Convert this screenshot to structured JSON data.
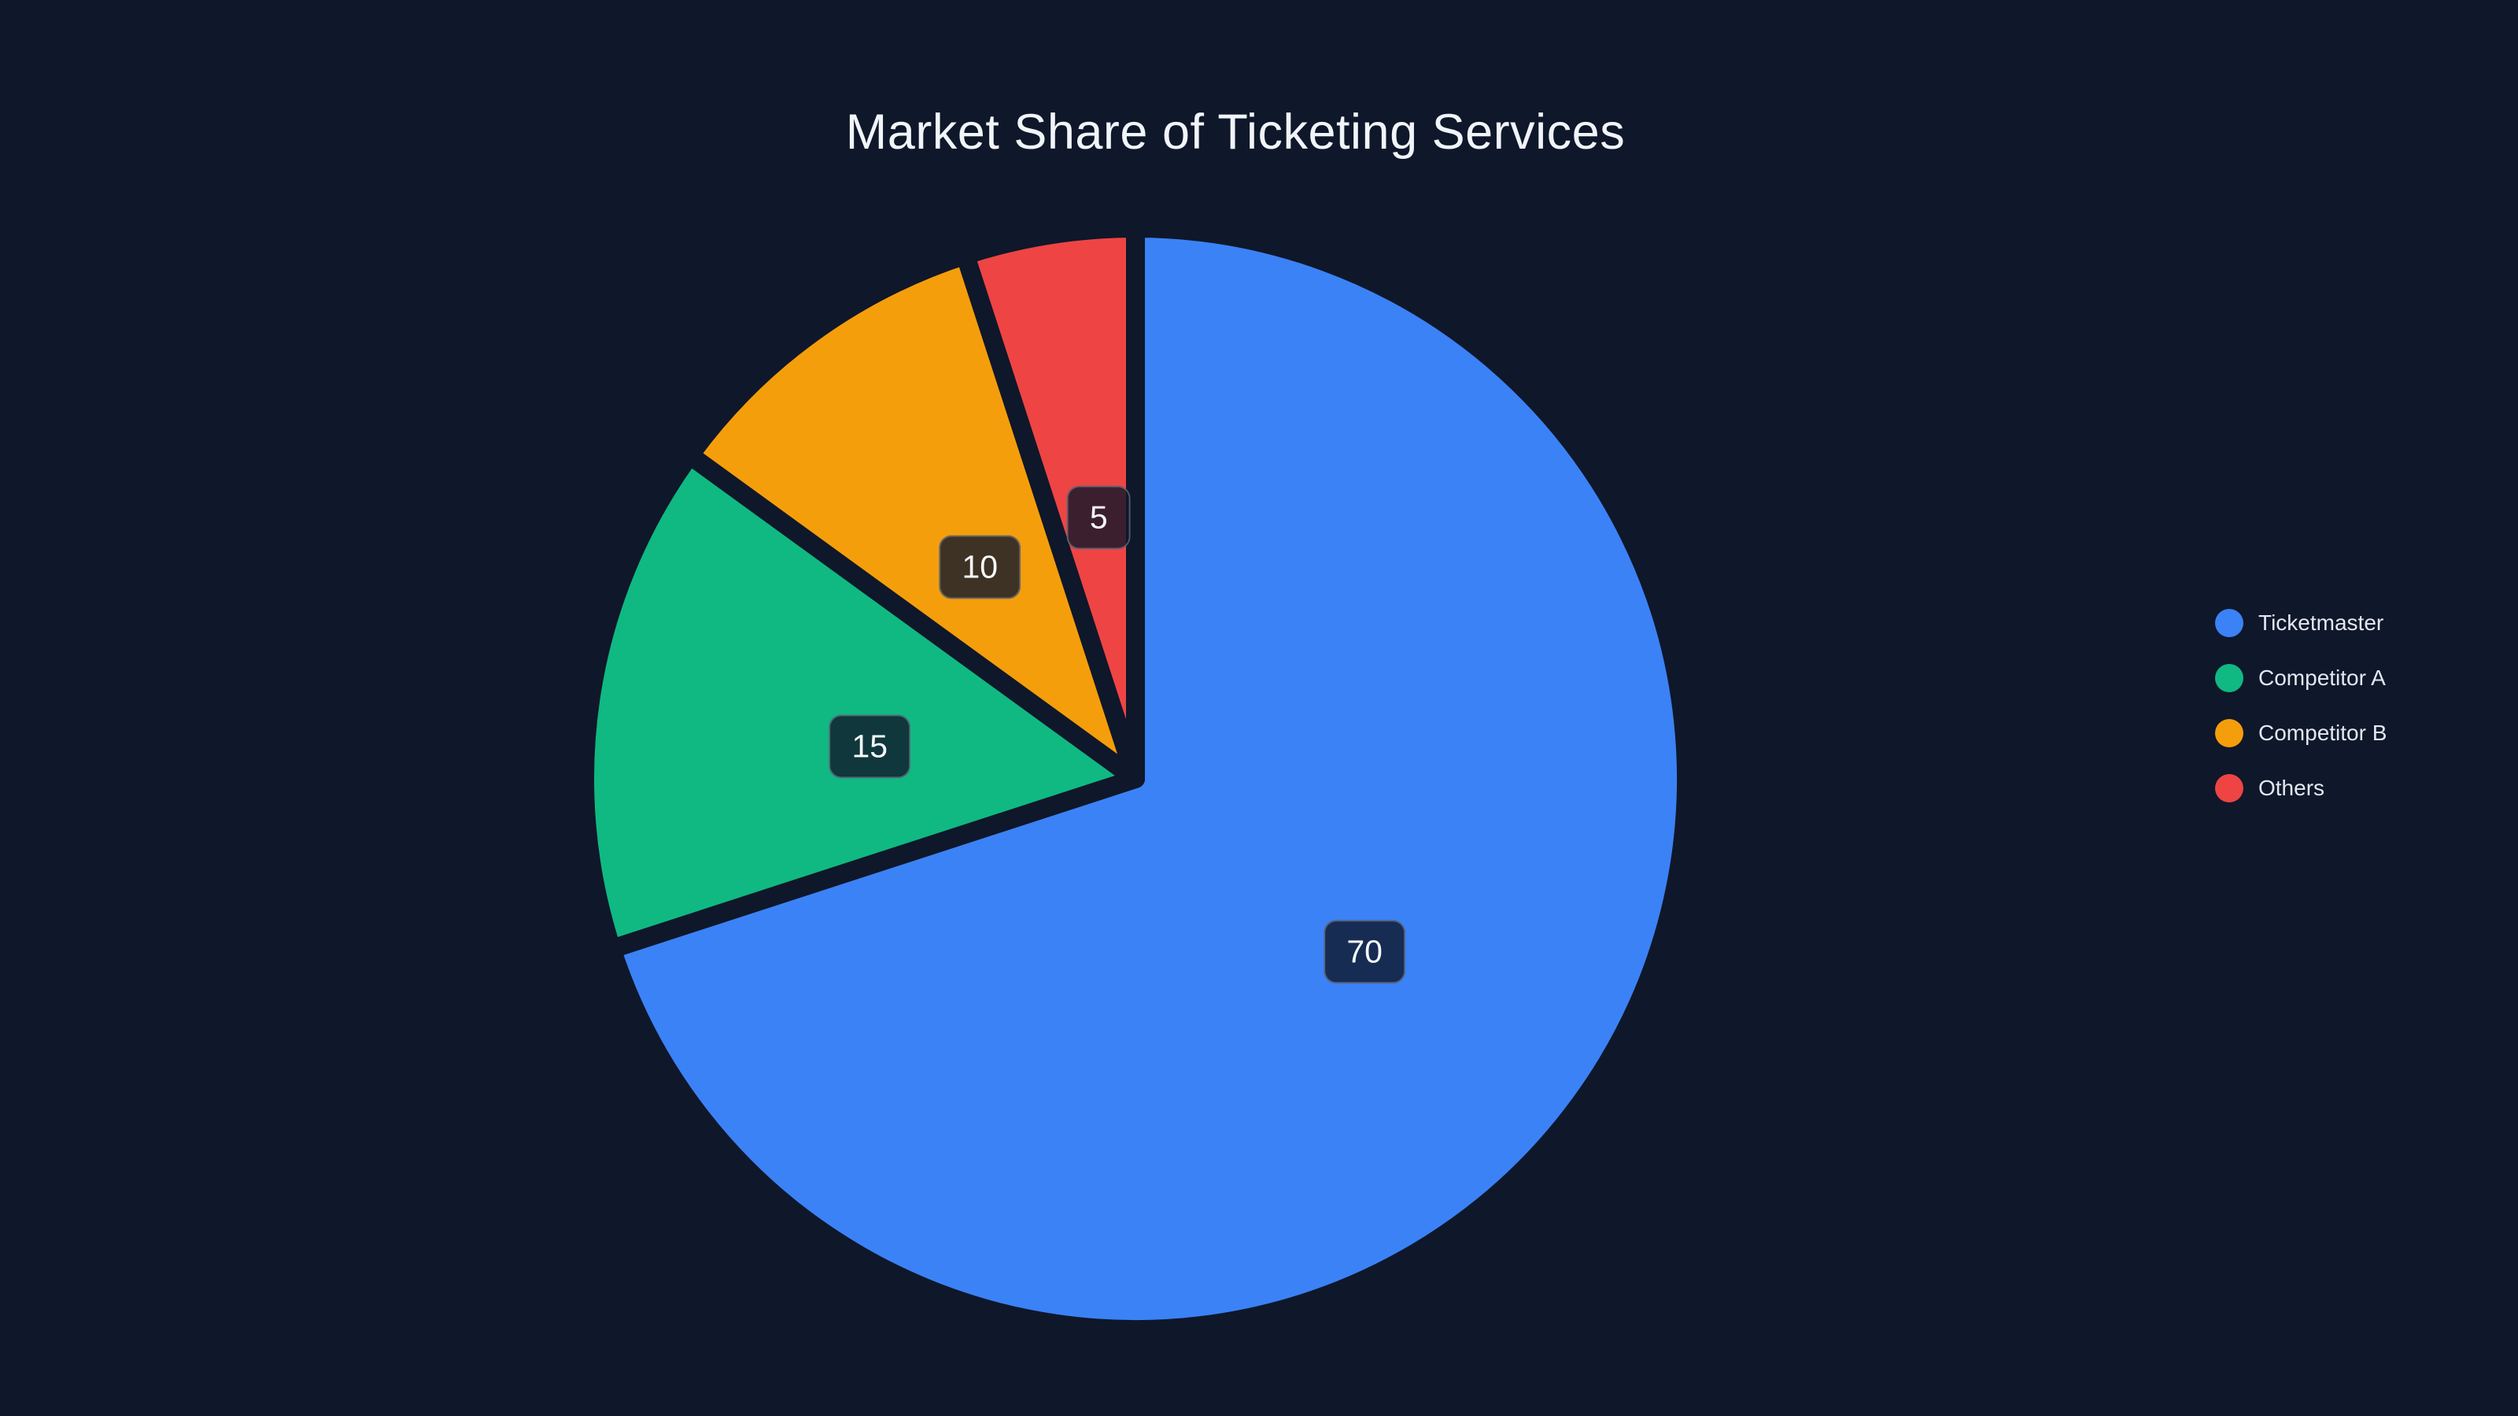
{
  "chart_data": {
    "type": "pie",
    "title": "Market Share of Ticketing Services",
    "labels": [
      "Ticketmaster",
      "Competitor A",
      "Competitor B",
      "Others"
    ],
    "values": [
      70,
      15,
      10,
      5
    ],
    "value_labels": [
      "70",
      "15",
      "10",
      "5"
    ],
    "colors": [
      "#3b82f6",
      "#10b981",
      "#f59e0b",
      "#ef4444"
    ],
    "start_angle_deg": 0,
    "direction": "clockwise",
    "legend_position": "right",
    "labels_inside": true
  },
  "theme": {
    "page_background": "#0f172a",
    "title_color": "#f1f5f9",
    "slice_separator_color": "#0f172a",
    "badge_background": "rgba(15, 23, 42, 0.8)",
    "badge_border_color": "rgba(170, 184, 201, 0.40)",
    "badge_text_color": "#f8fafc",
    "legend_text_color": "#e2e8f0"
  },
  "legend": {
    "items": [
      {
        "label": "Ticketmaster",
        "color": "#3b82f6"
      },
      {
        "label": "Competitor A",
        "color": "#10b981"
      },
      {
        "label": "Competitor B",
        "color": "#f59e0b"
      },
      {
        "label": "Others",
        "color": "#ef4444"
      }
    ]
  }
}
